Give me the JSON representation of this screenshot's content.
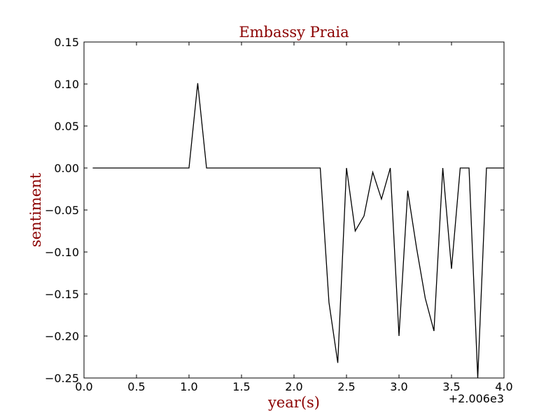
{
  "chart_data": {
    "type": "line",
    "title": "Embassy Praia",
    "xlabel": "year(s)",
    "ylabel": "sentiment",
    "x_offset_label": "+2.006e3",
    "xlim": [
      0.0,
      4.0
    ],
    "ylim": [
      -0.25,
      0.15
    ],
    "x_ticks": [
      0.0,
      0.5,
      1.0,
      1.5,
      2.0,
      2.5,
      3.0,
      3.5,
      4.0
    ],
    "x_tick_labels": [
      "0.0",
      "0.5",
      "1.0",
      "1.5",
      "2.0",
      "2.5",
      "3.0",
      "3.5",
      "4.0"
    ],
    "y_ticks": [
      0.15,
      0.1,
      0.05,
      0.0,
      -0.05,
      -0.1,
      -0.15,
      -0.2,
      -0.25
    ],
    "y_tick_labels": [
      "0.15",
      "0.10",
      "0.05",
      "0.00",
      "−0.05",
      "−0.10",
      "−0.15",
      "−0.20",
      "−0.25"
    ],
    "grid": false,
    "line_color": "#000000",
    "text_color": "#8b0000",
    "series": [
      {
        "x": [
          0.083,
          1.0,
          1.083,
          1.167,
          2.25,
          2.333,
          2.417,
          2.5,
          2.583,
          2.667,
          2.75,
          2.833,
          2.917,
          3.0,
          3.083,
          3.167,
          3.25,
          3.333,
          3.417,
          3.5,
          3.583,
          3.667,
          3.75,
          3.833,
          4.0
        ],
        "values": [
          0.0,
          0.0,
          0.101,
          0.0,
          0.0,
          -0.16,
          -0.232,
          0.0,
          -0.075,
          -0.057,
          -0.005,
          -0.037,
          0.0,
          -0.2,
          -0.027,
          -0.095,
          -0.155,
          -0.194,
          0.0,
          -0.12,
          0.0,
          0.0,
          -0.25,
          0.0,
          0.0
        ]
      }
    ]
  }
}
